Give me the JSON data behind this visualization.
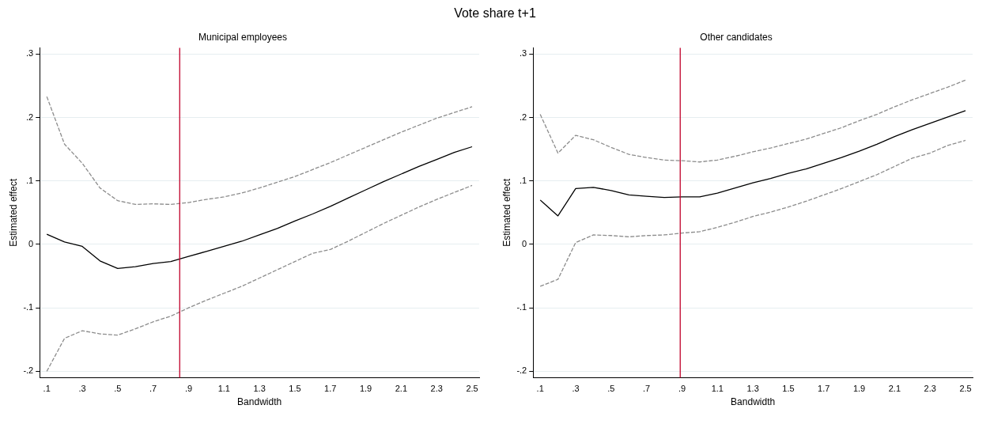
{
  "chart_data": [
    {
      "type": "line",
      "title": "Municipal employees",
      "annotations": [
        "Vote share t+1"
      ],
      "xlabel": "Bandwidth",
      "ylabel": "Estimated effect",
      "x": [
        0.1,
        0.2,
        0.3,
        0.4,
        0.5,
        0.6,
        0.7,
        0.8,
        0.9,
        1.0,
        1.1,
        1.2,
        1.3,
        1.4,
        1.5,
        1.6,
        1.7,
        1.8,
        1.9,
        2.0,
        2.1,
        2.2,
        2.3,
        2.4,
        2.5
      ],
      "series": [
        {
          "color": "#000000",
          "line_style": "solid",
          "values": [
            0.016,
            0.004,
            -0.003,
            -0.026,
            -0.038,
            -0.035,
            -0.03,
            -0.027,
            -0.019,
            -0.011,
            -0.003,
            0.005,
            0.015,
            0.025,
            0.037,
            0.048,
            0.06,
            0.073,
            0.086,
            0.099,
            0.111,
            0.123,
            0.134,
            0.145,
            0.154
          ]
        },
        {
          "color": "#8c8c8c",
          "line_style": "dashed",
          "values": [
            0.233,
            0.158,
            0.128,
            0.089,
            0.069,
            0.063,
            0.064,
            0.063,
            0.066,
            0.071,
            0.075,
            0.081,
            0.089,
            0.098,
            0.107,
            0.118,
            0.129,
            0.141,
            0.153,
            0.165,
            0.177,
            0.188,
            0.199,
            0.208,
            0.217
          ]
        },
        {
          "color": "#8c8c8c",
          "line_style": "dashed",
          "values": [
            -0.2,
            -0.148,
            -0.136,
            -0.141,
            -0.143,
            -0.133,
            -0.122,
            -0.113,
            -0.1,
            -0.088,
            -0.077,
            -0.066,
            -0.053,
            -0.04,
            -0.027,
            -0.014,
            -0.008,
            0.005,
            0.019,
            0.033,
            0.046,
            0.059,
            0.071,
            0.082,
            0.093
          ]
        }
      ],
      "ref_lines": [
        {
          "axis": "x",
          "value": 0.85,
          "color": "#c0002a"
        }
      ],
      "xlim": [
        0.06,
        2.54
      ],
      "ylim": [
        -0.21,
        0.31
      ],
      "xticks": [
        {
          "value": 0.1,
          "label": ".1"
        },
        {
          "value": 0.3,
          "label": ".3"
        },
        {
          "value": 0.5,
          "label": ".5"
        },
        {
          "value": 0.7,
          "label": ".7"
        },
        {
          "value": 0.9,
          "label": ".9"
        },
        1.1,
        1.3,
        1.5,
        1.7,
        1.9,
        2.1,
        2.3,
        2.5
      ],
      "yticks": [
        {
          "value": -0.2,
          "label": "-.2"
        },
        {
          "value": -0.1,
          "label": "-.1"
        },
        0,
        {
          "value": 0.1,
          "label": ".1"
        },
        {
          "value": 0.2,
          "label": ".2"
        },
        {
          "value": 0.3,
          "label": ".3"
        }
      ],
      "grid": "y",
      "legend": false,
      "marker": "none"
    },
    {
      "type": "line",
      "title": "Other candidates",
      "xlabel": "Bandwidth",
      "ylabel": "Estimated effect",
      "x": [
        0.1,
        0.2,
        0.3,
        0.4,
        0.5,
        0.6,
        0.7,
        0.8,
        0.9,
        1.0,
        1.1,
        1.2,
        1.3,
        1.4,
        1.5,
        1.6,
        1.7,
        1.8,
        1.9,
        2.0,
        2.1,
        2.2,
        2.3,
        2.4,
        2.5
      ],
      "series": [
        {
          "color": "#000000",
          "line_style": "solid",
          "values": [
            0.07,
            0.045,
            0.088,
            0.09,
            0.085,
            0.078,
            0.076,
            0.074,
            0.075,
            0.075,
            0.081,
            0.089,
            0.097,
            0.104,
            0.112,
            0.119,
            0.128,
            0.137,
            0.147,
            0.158,
            0.17,
            0.181,
            0.191,
            0.201,
            0.211
          ]
        },
        {
          "color": "#8c8c8c",
          "line_style": "dashed",
          "values": [
            0.205,
            0.144,
            0.172,
            0.165,
            0.153,
            0.142,
            0.137,
            0.133,
            0.132,
            0.13,
            0.133,
            0.139,
            0.146,
            0.152,
            0.159,
            0.166,
            0.175,
            0.184,
            0.195,
            0.205,
            0.217,
            0.228,
            0.238,
            0.248,
            0.259
          ]
        },
        {
          "color": "#8c8c8c",
          "line_style": "dashed",
          "values": [
            -0.066,
            -0.055,
            0.003,
            0.015,
            0.014,
            0.012,
            0.014,
            0.015,
            0.018,
            0.02,
            0.027,
            0.035,
            0.044,
            0.051,
            0.059,
            0.068,
            0.078,
            0.088,
            0.099,
            0.11,
            0.123,
            0.136,
            0.144,
            0.156,
            0.164
          ]
        }
      ],
      "ref_lines": [
        {
          "axis": "x",
          "value": 0.89,
          "color": "#c0002a"
        }
      ],
      "xlim": [
        0.06,
        2.54
      ],
      "ylim": [
        -0.21,
        0.31
      ],
      "xticks": [
        {
          "value": 0.1,
          "label": ".1"
        },
        {
          "value": 0.3,
          "label": ".3"
        },
        {
          "value": 0.5,
          "label": ".5"
        },
        {
          "value": 0.7,
          "label": ".7"
        },
        {
          "value": 0.9,
          "label": ".9"
        },
        1.1,
        1.3,
        1.5,
        1.7,
        1.9,
        2.1,
        2.3,
        2.5
      ],
      "yticks": [
        {
          "value": -0.2,
          "label": "-.2"
        },
        {
          "value": -0.1,
          "label": "-.1"
        },
        0,
        {
          "value": 0.1,
          "label": ".1"
        },
        {
          "value": 0.2,
          "label": ".2"
        },
        {
          "value": 0.3,
          "label": ".3"
        }
      ],
      "grid": "y",
      "legend": false,
      "marker": "none"
    }
  ]
}
